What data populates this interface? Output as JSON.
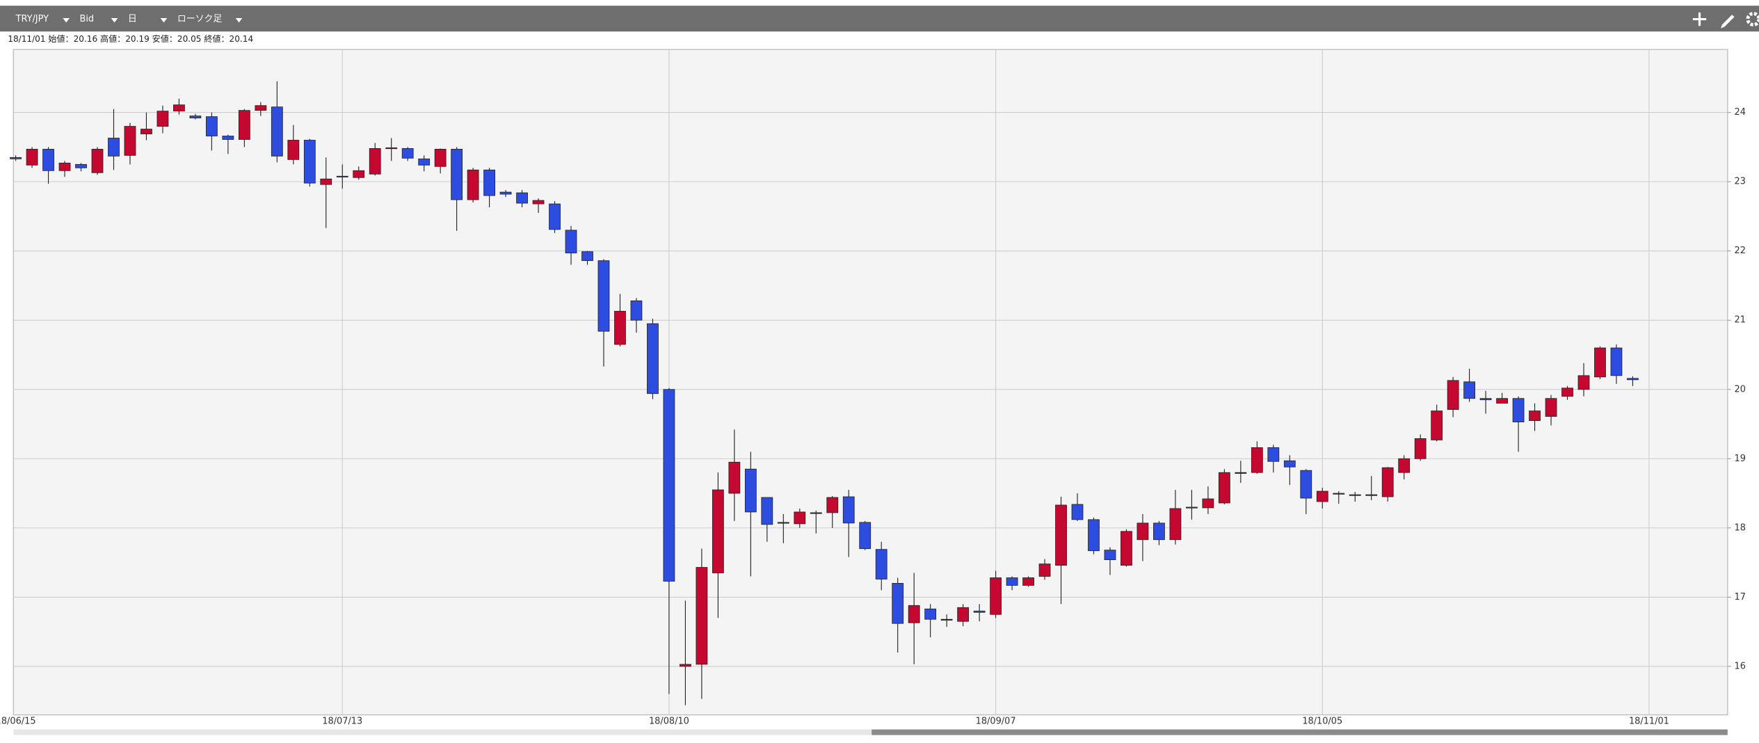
{
  "toolbar": {
    "symbol": "TRY/JPY",
    "price_type": "Bid",
    "period": "日",
    "chart_style": "ローソク足"
  },
  "info": "18/11/01 始値：20.16 高値：20.19 安値：20.05 終値：20.14",
  "chart_data": {
    "type": "candlestick",
    "up_color": "#c4082f",
    "down_color": "#2d4ce0",
    "grid": true,
    "ylim": [
      15.3,
      24.91
    ],
    "yticks": [
      16,
      17,
      18,
      19,
      20,
      21,
      22,
      23,
      24
    ],
    "xtick_labels": [
      "18/06/15",
      "18/07/13",
      "18/08/10",
      "18/09/07",
      "18/10/05",
      "18/11/01"
    ],
    "open": [
      23.35,
      23.24,
      23.47,
      23.16,
      23.25,
      23.13,
      23.63,
      23.38,
      23.69,
      23.8,
      24.02,
      23.95,
      23.94,
      23.66,
      23.61,
      24.03,
      24.08,
      23.32,
      23.6,
      22.96,
      23.08,
      23.06,
      23.11,
      23.48,
      23.48,
      23.33,
      23.22,
      23.47,
      22.74,
      23.17,
      22.85,
      22.84,
      22.68,
      22.68,
      22.3,
      21.99,
      21.86,
      20.65,
      21.28,
      20.95,
      20.0,
      16.0,
      16.03,
      17.35,
      18.5,
      18.85,
      18.44,
      18.07,
      18.06,
      18.21,
      18.22,
      18.45,
      18.08,
      17.69,
      17.2,
      16.63,
      16.83,
      16.68,
      16.65,
      16.8,
      16.75,
      17.28,
      17.17,
      17.3,
      17.46,
      18.34,
      18.12,
      17.68,
      17.46,
      17.83,
      18.07,
      17.83,
      18.3,
      18.29,
      18.36,
      18.8,
      18.8,
      19.16,
      18.97,
      18.83,
      18.38,
      18.49,
      18.48,
      18.47,
      18.45,
      18.8,
      19.0,
      19.27,
      19.71,
      20.11,
      19.87,
      19.8,
      19.87,
      19.55,
      19.61,
      19.9,
      20.0,
      20.18,
      20.6,
      20.16
    ],
    "high": [
      23.38,
      23.5,
      23.5,
      23.3,
      23.27,
      23.5,
      24.05,
      23.85,
      24.0,
      24.1,
      24.2,
      23.98,
      24.0,
      23.68,
      24.05,
      24.15,
      24.45,
      23.82,
      23.62,
      23.35,
      23.25,
      23.22,
      23.56,
      23.63,
      23.5,
      23.38,
      23.48,
      23.5,
      23.2,
      23.2,
      22.88,
      22.88,
      22.76,
      22.72,
      22.36,
      22.0,
      21.88,
      21.38,
      21.32,
      21.02,
      20.02,
      16.95,
      17.7,
      18.8,
      19.42,
      19.1,
      18.44,
      18.2,
      18.28,
      18.25,
      18.46,
      18.55,
      18.1,
      17.8,
      17.28,
      17.35,
      16.9,
      16.75,
      16.9,
      16.9,
      17.38,
      17.3,
      17.3,
      17.55,
      18.45,
      18.5,
      18.15,
      17.72,
      17.98,
      18.2,
      18.1,
      18.55,
      18.55,
      18.6,
      18.85,
      18.97,
      19.25,
      19.2,
      19.05,
      18.85,
      18.58,
      18.53,
      18.52,
      18.75,
      18.88,
      19.05,
      19.35,
      19.78,
      20.18,
      20.3,
      19.98,
      19.95,
      19.9,
      19.8,
      19.92,
      20.05,
      20.38,
      20.62,
      20.65,
      20.19
    ],
    "low": [
      23.3,
      23.2,
      22.97,
      23.07,
      23.15,
      23.1,
      23.17,
      23.25,
      23.6,
      23.7,
      23.97,
      23.9,
      23.45,
      23.4,
      23.5,
      23.95,
      23.28,
      23.25,
      22.93,
      22.33,
      22.9,
      23.03,
      23.09,
      23.3,
      23.3,
      23.15,
      23.12,
      22.29,
      22.7,
      22.63,
      22.78,
      22.63,
      22.55,
      22.26,
      21.8,
      21.8,
      20.33,
      20.62,
      20.82,
      19.86,
      15.6,
      15.44,
      15.53,
      16.7,
      18.1,
      17.3,
      17.8,
      17.78,
      18.0,
      17.92,
      18.0,
      17.58,
      17.68,
      17.1,
      16.2,
      16.03,
      16.42,
      16.57,
      16.58,
      16.65,
      16.7,
      17.1,
      17.15,
      17.25,
      16.9,
      18.1,
      17.62,
      17.32,
      17.44,
      17.52,
      17.75,
      17.76,
      18.12,
      18.2,
      18.34,
      18.65,
      18.78,
      18.8,
      18.62,
      18.2,
      18.28,
      18.35,
      18.38,
      18.4,
      18.38,
      18.7,
      18.97,
      19.25,
      19.6,
      19.82,
      19.65,
      19.8,
      19.1,
      19.4,
      19.48,
      19.85,
      19.9,
      20.15,
      20.08,
      20.05
    ],
    "close": [
      23.33,
      23.47,
      23.16,
      23.27,
      23.2,
      23.47,
      23.37,
      23.8,
      23.76,
      24.02,
      24.11,
      23.92,
      23.66,
      23.61,
      24.03,
      24.1,
      23.37,
      23.6,
      22.98,
      23.04,
      23.07,
      23.16,
      23.48,
      23.49,
      23.34,
      23.24,
      23.47,
      22.74,
      23.17,
      22.8,
      22.82,
      22.69,
      22.73,
      22.31,
      21.97,
      21.86,
      20.84,
      21.13,
      21.0,
      19.94,
      17.23,
      16.03,
      17.43,
      18.55,
      18.95,
      18.23,
      18.05,
      18.08,
      18.23,
      18.22,
      18.44,
      18.07,
      17.7,
      17.26,
      16.62,
      16.88,
      16.68,
      16.68,
      16.85,
      16.78,
      17.28,
      17.17,
      17.28,
      17.48,
      18.33,
      18.12,
      17.67,
      17.54,
      17.95,
      18.07,
      17.83,
      18.28,
      18.29,
      18.42,
      18.8,
      18.8,
      19.16,
      18.96,
      18.88,
      18.43,
      18.53,
      18.5,
      18.47,
      18.48,
      18.87,
      19.0,
      19.29,
      19.69,
      20.13,
      19.87,
      19.85,
      19.87,
      19.53,
      19.69,
      19.87,
      20.02,
      20.2,
      20.6,
      20.2,
      20.14
    ]
  }
}
